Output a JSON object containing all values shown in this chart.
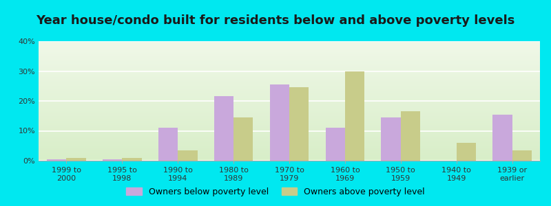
{
  "title": "Year house/condo built for residents below and above poverty levels",
  "categories": [
    "1999 to\n2000",
    "1995 to\n1998",
    "1990 to\n1994",
    "1980 to\n1989",
    "1970 to\n1979",
    "1960 to\n1969",
    "1950 to\n1959",
    "1940 to\n1949",
    "1939 or\nearlier"
  ],
  "below_poverty": [
    0.5,
    0.5,
    11.0,
    21.5,
    25.5,
    11.0,
    14.5,
    0.0,
    15.5
  ],
  "above_poverty": [
    1.0,
    1.0,
    3.5,
    14.5,
    24.5,
    30.0,
    16.5,
    6.0,
    3.5
  ],
  "below_color": "#c9a8dc",
  "above_color": "#c8cc8a",
  "outer_background": "#00e8f0",
  "ylim": [
    0,
    40
  ],
  "yticks": [
    0,
    10,
    20,
    30,
    40
  ],
  "bar_width": 0.35,
  "legend_below_label": "Owners below poverty level",
  "legend_above_label": "Owners above poverty level",
  "title_fontsize": 13,
  "tick_fontsize": 8,
  "legend_fontsize": 9,
  "grid_color": "#ffffff",
  "bg_top_color": "#f0f8e8",
  "bg_bottom_color": "#d8eec8"
}
